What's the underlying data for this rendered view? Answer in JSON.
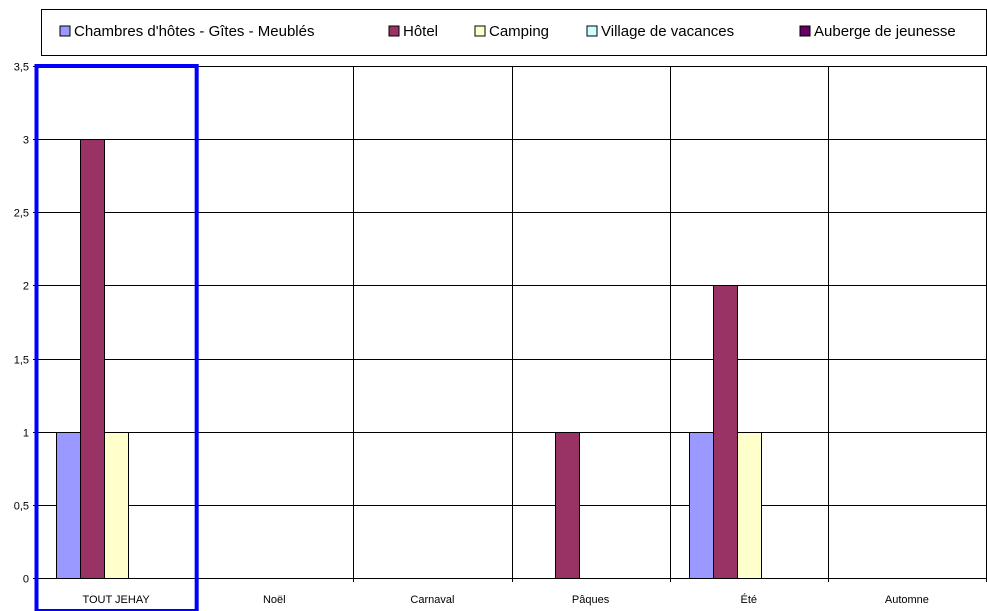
{
  "chart_data": {
    "type": "bar",
    "categories": [
      "TOUT JEHAY",
      "Noël",
      "Carnaval",
      "Pâques",
      "Été",
      "Automne"
    ],
    "series": [
      {
        "name": "Chambres d'hôtes - Gîtes - Meublés",
        "color": "#9999ff",
        "values": [
          1,
          0,
          0,
          0,
          1,
          0
        ]
      },
      {
        "name": "Hôtel",
        "color": "#993366",
        "values": [
          3,
          0,
          0,
          1,
          2,
          0
        ]
      },
      {
        "name": "Camping",
        "color": "#ffffcc",
        "values": [
          1,
          0,
          0,
          0,
          1,
          0
        ]
      },
      {
        "name": "Village de vacances",
        "color": "#ccffff",
        "values": [
          0,
          0,
          0,
          0,
          0,
          0
        ]
      },
      {
        "name": "Auberge de jeunesse",
        "color": "#660066",
        "values": [
          0,
          0,
          0,
          0,
          0,
          0
        ]
      }
    ],
    "yticks": [
      "0",
      "0,5",
      "1",
      "1,5",
      "2",
      "2,5",
      "3",
      "3,5"
    ],
    "ylim": [
      0,
      3.5
    ],
    "grid": true,
    "legend_position": "top",
    "highlighted_category": "TOUT JEHAY",
    "highlight_color": "#0000ff"
  }
}
